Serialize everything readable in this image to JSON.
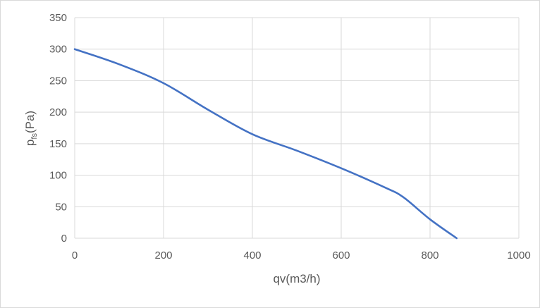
{
  "chart_data": {
    "type": "line",
    "title": "",
    "xlabel": "qv(m3/h)",
    "ylabel": {
      "base": "p",
      "sub": "fs",
      "rest": "(Pa)"
    },
    "xlim": [
      0,
      1000
    ],
    "ylim": [
      0,
      350
    ],
    "x_ticks": [
      "0",
      "200",
      "400",
      "600",
      "800",
      "1000"
    ],
    "y_ticks": [
      "0",
      "50",
      "100",
      "150",
      "200",
      "250",
      "300",
      "350"
    ],
    "grid": true,
    "legend": "none",
    "series": [
      {
        "color": "#4472c4",
        "x": [
          0,
          100,
          200,
          300,
          400,
          500,
          600,
          700,
          740,
          800,
          860
        ],
        "y": [
          300,
          276,
          246,
          204,
          165,
          139,
          111,
          80,
          65,
          30,
          0
        ]
      }
    ]
  }
}
